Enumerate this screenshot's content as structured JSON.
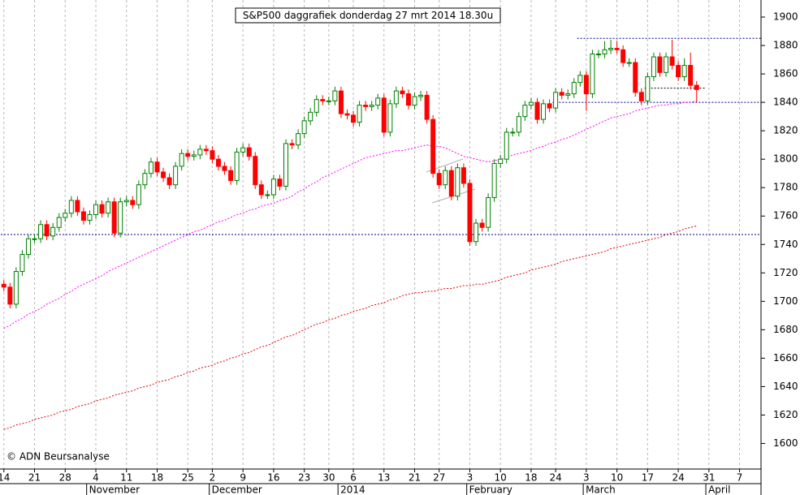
{
  "chart_data": {
    "type": "candlestick",
    "title": "S&P500 daggrafiek donderdag 27 mrt 2014 18.30u",
    "copyright": "© ADN Beursanalyse",
    "categories": [
      "14",
      null,
      null,
      null,
      null,
      "21",
      null,
      null,
      null,
      null,
      "28",
      null,
      null,
      null,
      null,
      "4",
      null,
      null,
      null,
      null,
      "11",
      null,
      null,
      null,
      null,
      "18",
      null,
      null,
      null,
      null,
      "25",
      null,
      null,
      null,
      "2",
      null,
      null,
      null,
      null,
      "9",
      null,
      null,
      null,
      null,
      "16",
      null,
      null,
      null,
      null,
      "23",
      null,
      null,
      null,
      "30",
      null,
      null,
      null,
      "6",
      null,
      null,
      null,
      null,
      "13",
      null,
      null,
      null,
      null,
      "21",
      null,
      null,
      null,
      "27",
      null,
      null,
      null,
      null,
      "3",
      null,
      null,
      null,
      null,
      "10",
      null,
      null,
      null,
      null,
      "18",
      null,
      null,
      null,
      "24",
      null,
      null,
      null,
      null,
      "3",
      null,
      null,
      null,
      null,
      "10",
      null,
      null,
      null,
      null,
      "17",
      null,
      null,
      null,
      null,
      "24",
      null,
      null,
      null,
      null,
      "31",
      null,
      null,
      null,
      null,
      "7",
      null,
      null,
      null
    ],
    "month_labels": [
      null,
      null,
      null,
      null,
      null,
      null,
      null,
      null,
      null,
      null,
      null,
      null,
      null,
      null,
      "November",
      null,
      null,
      null,
      null,
      null,
      null,
      null,
      null,
      null,
      null,
      null,
      null,
      null,
      null,
      null,
      null,
      null,
      null,
      null,
      "December",
      null,
      null,
      null,
      null,
      null,
      null,
      null,
      null,
      null,
      null,
      null,
      null,
      null,
      null,
      null,
      null,
      null,
      null,
      null,
      null,
      "2014",
      null,
      null,
      null,
      null,
      null,
      null,
      null,
      null,
      null,
      null,
      null,
      null,
      null,
      null,
      null,
      null,
      null,
      null,
      null,
      null,
      "February",
      null,
      null,
      null,
      null,
      null,
      null,
      null,
      null,
      null,
      null,
      null,
      null,
      null,
      null,
      null,
      null,
      null,
      null,
      "March",
      null,
      null,
      null,
      null,
      null,
      null,
      null,
      null,
      null,
      null,
      null,
      null,
      null,
      null,
      null,
      null,
      null,
      null,
      null,
      "April",
      null,
      null,
      null,
      null,
      null,
      null,
      null,
      null
    ],
    "open": [
      1712,
      1710,
      1698,
      1721,
      1733,
      1744,
      1744,
      1754,
      1746,
      1752,
      1759,
      1762,
      1771,
      1763,
      1757,
      1761,
      1768,
      1762,
      1770,
      1748,
      1770,
      1771,
      1768,
      1782,
      1790,
      1798,
      1791,
      1787,
      1782,
      1795,
      1804,
      1802,
      1803,
      1807,
      1806,
      1800,
      1795,
      1792,
      1785,
      1805,
      1808,
      1802,
      1782,
      1775,
      1775,
      1786,
      1781,
      1811,
      1810,
      1818,
      1827,
      1833,
      1842,
      1841,
      1841,
      1848,
      1832,
      1831,
      1826,
      1838,
      1837,
      1838,
      1843,
      1819,
      1839,
      1848,
      1846,
      1838,
      1844,
      1845,
      1828,
      1790,
      1782,
      1792,
      1774,
      1794,
      1783,
      1742,
      1755,
      1752,
      1773,
      1797,
      1800,
      1819,
      1819,
      1830,
      1838,
      1840,
      1828,
      1839,
      1836,
      1847,
      1845,
      1846,
      1854,
      1859,
      1846,
      1874,
      1874,
      1877,
      1878,
      1877,
      1868,
      1868,
      1847,
      1841,
      1858,
      1872,
      1861,
      1872,
      1866,
      1858,
      1866,
      1852,
      null,
      null,
      null,
      null,
      null,
      null,
      null,
      null,
      null,
      null
    ],
    "high": [
      1715,
      1713,
      1724,
      1736,
      1747,
      1747,
      1757,
      1757,
      1755,
      1762,
      1765,
      1774,
      1774,
      1766,
      1764,
      1771,
      1771,
      1773,
      1773,
      1773,
      1774,
      1774,
      1785,
      1793,
      1801,
      1801,
      1794,
      1790,
      1798,
      1807,
      1807,
      1806,
      1810,
      1810,
      1809,
      1803,
      1798,
      1795,
      1808,
      1811,
      1811,
      1805,
      1785,
      1778,
      1789,
      1789,
      1814,
      1814,
      1821,
      1830,
      1836,
      1845,
      1845,
      1844,
      1851,
      1851,
      1835,
      1834,
      1841,
      1841,
      1841,
      1846,
      1846,
      1842,
      1851,
      1851,
      1849,
      1847,
      1848,
      1848,
      1831,
      1793,
      1795,
      1795,
      1797,
      1797,
      1786,
      1758,
      1758,
      1776,
      1800,
      1803,
      1822,
      1822,
      1833,
      1841,
      1843,
      1843,
      1842,
      1842,
      1850,
      1850,
      1849,
      1857,
      1862,
      1862,
      1877,
      1877,
      1883,
      1884,
      1883,
      1880,
      1871,
      1871,
      1850,
      1861,
      1875,
      1875,
      1875,
      1884,
      1869,
      1871,
      1875,
      1855,
      null,
      null,
      null,
      null,
      null,
      null,
      null,
      null,
      null,
      null
    ],
    "low": [
      1707,
      1695,
      1695,
      1718,
      1730,
      1741,
      1741,
      1743,
      1743,
      1749,
      1756,
      1759,
      1760,
      1754,
      1754,
      1758,
      1759,
      1759,
      1745,
      1745,
      1767,
      1765,
      1765,
      1779,
      1787,
      1788,
      1784,
      1779,
      1779,
      1792,
      1799,
      1799,
      1800,
      1803,
      1797,
      1792,
      1789,
      1782,
      1782,
      1802,
      1799,
      1779,
      1772,
      1772,
      1772,
      1778,
      1778,
      1807,
      1807,
      1815,
      1824,
      1830,
      1838,
      1838,
      1838,
      1829,
      1828,
      1823,
      1823,
      1834,
      1834,
      1835,
      1816,
      1816,
      1836,
      1843,
      1835,
      1835,
      1841,
      1825,
      1787,
      1779,
      1779,
      1771,
      1771,
      1780,
      1739,
      1739,
      1749,
      1749,
      1770,
      1794,
      1797,
      1816,
      1816,
      1827,
      1835,
      1825,
      1825,
      1833,
      1833,
      1842,
      1842,
      1843,
      1851,
      1834,
      1843,
      1871,
      1871,
      1874,
      1874,
      1865,
      1865,
      1844,
      1838,
      1838,
      1855,
      1858,
      1858,
      1863,
      1855,
      1855,
      1849,
      1840,
      null,
      null,
      null,
      null,
      null,
      null,
      null,
      null,
      null,
      null
    ],
    "close": [
      1710,
      1698,
      1721,
      1733,
      1744,
      1744,
      1754,
      1746,
      1752,
      1759,
      1762,
      1771,
      1763,
      1757,
      1761,
      1768,
      1762,
      1770,
      1748,
      1770,
      1771,
      1768,
      1782,
      1790,
      1798,
      1791,
      1787,
      1782,
      1795,
      1804,
      1802,
      1803,
      1807,
      1806,
      1800,
      1795,
      1792,
      1785,
      1805,
      1808,
      1802,
      1782,
      1775,
      1775,
      1786,
      1781,
      1811,
      1810,
      1818,
      1827,
      1833,
      1842,
      1841,
      1841,
      1848,
      1832,
      1831,
      1826,
      1838,
      1837,
      1838,
      1843,
      1819,
      1839,
      1848,
      1846,
      1838,
      1844,
      1845,
      1828,
      1790,
      1782,
      1792,
      1774,
      1794,
      1783,
      1742,
      1755,
      1752,
      1773,
      1797,
      1800,
      1819,
      1819,
      1830,
      1838,
      1840,
      1828,
      1839,
      1836,
      1847,
      1845,
      1846,
      1854,
      1859,
      1846,
      1874,
      1874,
      1877,
      1878,
      1877,
      1868,
      1868,
      1847,
      1841,
      1858,
      1872,
      1861,
      1872,
      1866,
      1858,
      1866,
      1852,
      1849,
      null,
      null,
      null,
      null,
      null,
      null,
      null,
      null,
      null,
      null
    ],
    "up_color": "#008000",
    "down_color": "#ff0000",
    "overlays": [
      {
        "color": "#ff00ff",
        "values": [
          1681,
          1683,
          1686,
          1688,
          1691,
          1693,
          1695,
          1698,
          1700,
          1702,
          1705,
          1707,
          1710,
          1712,
          1714,
          1716,
          1718,
          1721,
          1723,
          1725,
          1727,
          1729,
          1731,
          1733,
          1735,
          1737,
          1739,
          1741,
          1743,
          1745,
          1747,
          1749,
          1750,
          1752,
          1754,
          1756,
          1757,
          1759,
          1761,
          1762,
          1764,
          1765,
          1767,
          1768,
          1769,
          1771,
          1772,
          1774,
          1777,
          1779,
          1782,
          1784,
          1787,
          1789,
          1791,
          1793,
          1795,
          1797,
          1799,
          1801,
          1802,
          1803,
          1804,
          1805,
          1806,
          1806,
          1807,
          1808,
          1809,
          1810,
          1809,
          1809,
          1808,
          1806,
          1804,
          1802,
          1801,
          1800,
          1799,
          1798,
          1799,
          1800,
          1801,
          1803,
          1804,
          1805,
          1806,
          1808,
          1809,
          1811,
          1812,
          1814,
          1815,
          1817,
          1819,
          1821,
          1823,
          1825,
          1827,
          1829,
          1830,
          1831,
          1832,
          1834,
          1835,
          1836,
          1837,
          1838,
          1838,
          1839,
          1839,
          1840,
          1840,
          1841,
          null,
          null,
          null,
          null,
          null,
          null,
          null,
          null,
          null,
          null
        ]
      },
      {
        "color": "#e00000",
        "values": [
          1610,
          1611,
          1613,
          1614,
          1615,
          1617,
          1618,
          1619,
          1620,
          1622,
          1623,
          1624,
          1626,
          1627,
          1628,
          1630,
          1631,
          1632,
          1634,
          1635,
          1636,
          1637,
          1639,
          1640,
          1641,
          1643,
          1644,
          1645,
          1647,
          1648,
          1650,
          1651,
          1653,
          1654,
          1655,
          1657,
          1658,
          1660,
          1661,
          1663,
          1664,
          1666,
          1668,
          1669,
          1671,
          1673,
          1675,
          1676,
          1678,
          1680,
          1682,
          1684,
          1685,
          1687,
          1688,
          1690,
          1691,
          1693,
          1694,
          1695,
          1697,
          1698,
          1699,
          1701,
          1702,
          1704,
          1705,
          1706,
          1706,
          1707,
          1707,
          1708,
          1709,
          1709,
          1710,
          1711,
          1711,
          1712,
          1712,
          1713,
          1714,
          1715,
          1717,
          1718,
          1719,
          1720,
          1722,
          1723,
          1724,
          1725,
          1726,
          1728,
          1729,
          1730,
          1731,
          1732,
          1733,
          1734,
          1735,
          1737,
          1738,
          1739,
          1740,
          1741,
          1742,
          1743,
          1744,
          1745,
          1747,
          1748,
          1749,
          1751,
          1752,
          1753,
          null,
          null,
          null,
          null,
          null,
          null,
          null,
          null,
          null,
          null
        ]
      }
    ],
    "levels": [
      {
        "value": 1747,
        "color": "#000080"
      },
      {
        "value": 1840,
        "color": "#000080"
      },
      {
        "value": 1885,
        "color": "#000080"
      },
      {
        "value": 1850,
        "color": "#000000"
      }
    ],
    "ylim": [
      1582,
      1912
    ],
    "yticks": [
      1600,
      1620,
      1640,
      1660,
      1680,
      1700,
      1720,
      1740,
      1760,
      1780,
      1800,
      1820,
      1840,
      1860,
      1880,
      1900
    ],
    "grid": true
  }
}
